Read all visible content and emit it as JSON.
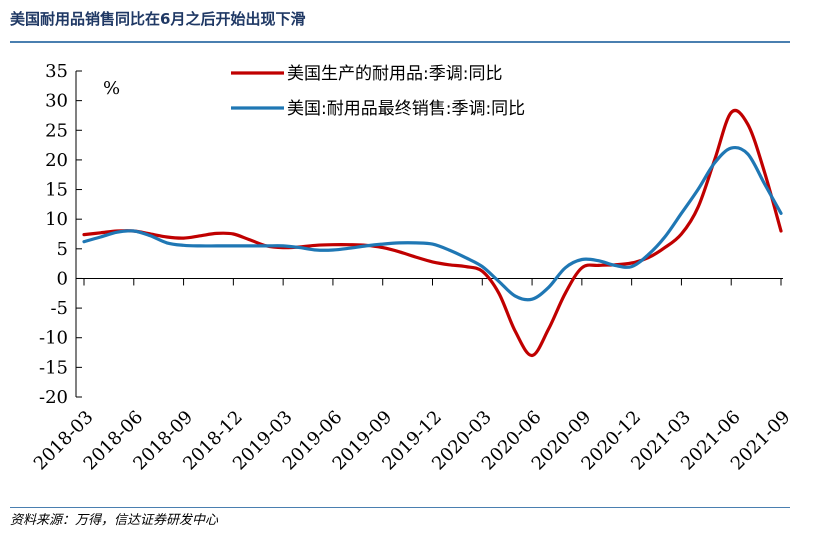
{
  "header": {
    "title": "美国耐用品销售同比在6月之后开始出现下滑"
  },
  "footer": {
    "source": "资料来源：万得，信达证券研发中心"
  },
  "chart_data": {
    "type": "line",
    "unit_label": "%",
    "ylim": [
      -20,
      35
    ],
    "yticks": [
      -20,
      -15,
      -10,
      -5,
      0,
      5,
      10,
      15,
      20,
      25,
      30,
      35
    ],
    "x_tick_labels": [
      "2018-03",
      "2018-06",
      "2018-09",
      "2018-12",
      "2019-03",
      "2019-06",
      "2019-09",
      "2019-12",
      "2020-03",
      "2020-06",
      "2020-09",
      "2020-12",
      "2021-03",
      "2021-06",
      "2021-09"
    ],
    "x": [
      "2018-03",
      "2018-04",
      "2018-05",
      "2018-06",
      "2018-07",
      "2018-08",
      "2018-09",
      "2018-10",
      "2018-11",
      "2018-12",
      "2019-01",
      "2019-02",
      "2019-03",
      "2019-04",
      "2019-05",
      "2019-06",
      "2019-07",
      "2019-08",
      "2019-09",
      "2019-10",
      "2019-11",
      "2019-12",
      "2020-01",
      "2020-02",
      "2020-03",
      "2020-04",
      "2020-05",
      "2020-06",
      "2020-07",
      "2020-08",
      "2020-09",
      "2020-10",
      "2020-11",
      "2020-12",
      "2021-01",
      "2021-02",
      "2021-03",
      "2021-04",
      "2021-05",
      "2021-06",
      "2021-07",
      "2021-08",
      "2021-09"
    ],
    "series": [
      {
        "name": "美国生产的耐用品:季调:同比",
        "color": "#c00000",
        "values": [
          7.4,
          7.7,
          8.0,
          8.0,
          7.5,
          7.0,
          6.8,
          7.2,
          7.6,
          7.5,
          6.5,
          5.5,
          5.2,
          5.3,
          5.6,
          5.7,
          5.7,
          5.6,
          5.2,
          4.5,
          3.6,
          2.8,
          2.3,
          2.0,
          1.2,
          -2.5,
          -9.0,
          -13.0,
          -8.5,
          -2.5,
          1.8,
          2.2,
          2.3,
          2.6,
          3.5,
          5.2,
          7.5,
          12.0,
          20.0,
          28.0,
          26.0,
          18.0,
          8.0
        ]
      },
      {
        "name": "美国:耐用品最终销售:季调:同比",
        "color": "#1f77b4",
        "values": [
          6.2,
          7.0,
          7.8,
          8.0,
          7.2,
          6.0,
          5.6,
          5.5,
          5.5,
          5.5,
          5.5,
          5.5,
          5.5,
          5.2,
          4.8,
          4.8,
          5.1,
          5.5,
          5.8,
          6.0,
          6.0,
          5.8,
          4.8,
          3.5,
          2.0,
          -0.5,
          -3.0,
          -3.5,
          -1.5,
          1.8,
          3.2,
          3.0,
          2.2,
          2.0,
          4.0,
          7.0,
          11.0,
          15.0,
          19.5,
          22.0,
          21.0,
          16.0,
          11.0
        ]
      }
    ],
    "legend_position": "top",
    "grid": false
  }
}
